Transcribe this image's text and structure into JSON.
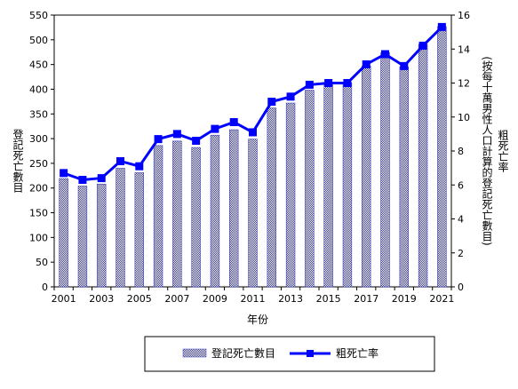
{
  "chart_data": {
    "type": "bar+line",
    "categories": [
      "2001",
      "2002",
      "2003",
      "2004",
      "2005",
      "2006",
      "2007",
      "2008",
      "2009",
      "2010",
      "2011",
      "2012",
      "2013",
      "2014",
      "2015",
      "2016",
      "2017",
      "2018",
      "2019",
      "2020",
      "2021"
    ],
    "x_tick_labels": [
      "2001",
      "2003",
      "2005",
      "2007",
      "2009",
      "2011",
      "2013",
      "2015",
      "2017",
      "2019",
      "2021"
    ],
    "series": [
      {
        "name": "登記死亡數目",
        "type": "bar",
        "axis": "left",
        "color": "#3a3aa8",
        "values": [
          219,
          204,
          208,
          240,
          231,
          286,
          295,
          282,
          307,
          318,
          299,
          362,
          372,
          398,
          411,
          413,
          447,
          474,
          445,
          491,
          527
        ]
      },
      {
        "name": "粗死亡率",
        "type": "line",
        "axis": "right",
        "color": "#0000ff",
        "values": [
          6.7,
          6.3,
          6.4,
          7.4,
          7.1,
          8.7,
          9.0,
          8.6,
          9.3,
          9.7,
          9.1,
          10.9,
          11.2,
          11.9,
          12.0,
          12.0,
          13.1,
          13.7,
          13.0,
          14.2,
          15.3
        ]
      }
    ],
    "y_left": {
      "label": "登記死亡數目",
      "min": 0,
      "max": 550,
      "ticks": [
        "0",
        "50",
        "100",
        "150",
        "200",
        "250",
        "300",
        "350",
        "400",
        "450",
        "500",
        "550"
      ]
    },
    "y_right": {
      "label": "粗死亡率",
      "sublabel": "(按每十萬男性人口計算的登記死亡數目)",
      "min": 0,
      "max": 16,
      "ticks": [
        "0",
        "2",
        "4",
        "6",
        "8",
        "10",
        "12",
        "14",
        "16"
      ]
    },
    "xlabel": "年份",
    "legend_position": "bottom",
    "grid": false
  }
}
